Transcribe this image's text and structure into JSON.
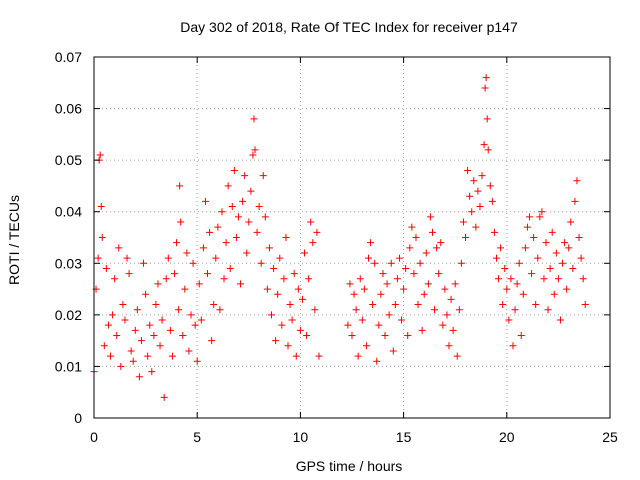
{
  "chart_data": {
    "type": "scatter",
    "title": "Day 302 of 2018, Rate Of TEC Index for receiver p147",
    "xlabel": "GPS time / hours",
    "ylabel": "ROTI / TECUs",
    "xlim": [
      0,
      25
    ],
    "ylim": [
      0,
      0.07
    ],
    "x_ticks": [
      0,
      5,
      10,
      15,
      20,
      25
    ],
    "x_tick_labels": [
      "0",
      "5",
      "10",
      "15",
      "20",
      "25"
    ],
    "y_ticks": [
      0,
      0.01,
      0.02,
      0.03,
      0.04,
      0.05,
      0.06,
      0.07
    ],
    "y_tick_labels": [
      "0",
      "0.01",
      "0.02",
      "0.03",
      "0.04",
      "0.05",
      "0.06",
      "0.07"
    ],
    "grid": true,
    "marker": "plus",
    "series_color": "#ff0000",
    "data_gaps_hours": [
      [
        11.0,
        12.2
      ]
    ],
    "series": [
      {
        "name": "ROTI",
        "points": [
          [
            0.0,
            0.009
          ],
          [
            0.1,
            0.025
          ],
          [
            0.2,
            0.031
          ],
          [
            0.25,
            0.05
          ],
          [
            0.3,
            0.051
          ],
          [
            0.35,
            0.041
          ],
          [
            0.4,
            0.035
          ],
          [
            0.5,
            0.014
          ],
          [
            0.6,
            0.029
          ],
          [
            0.7,
            0.018
          ],
          [
            0.8,
            0.012
          ],
          [
            0.9,
            0.02
          ],
          [
            1.0,
            0.027
          ],
          [
            1.1,
            0.016
          ],
          [
            1.2,
            0.033
          ],
          [
            1.3,
            0.01
          ],
          [
            1.4,
            0.022
          ],
          [
            1.5,
            0.019
          ],
          [
            1.6,
            0.031
          ],
          [
            1.7,
            0.028
          ],
          [
            1.8,
            0.013
          ],
          [
            1.9,
            0.011
          ],
          [
            2.0,
            0.017
          ],
          [
            2.1,
            0.021
          ],
          [
            2.2,
            0.008
          ],
          [
            2.3,
            0.015
          ],
          [
            2.4,
            0.03
          ],
          [
            2.5,
            0.024
          ],
          [
            2.6,
            0.012
          ],
          [
            2.7,
            0.018
          ],
          [
            2.8,
            0.009
          ],
          [
            2.9,
            0.016
          ],
          [
            3.0,
            0.022
          ],
          [
            3.1,
            0.026
          ],
          [
            3.2,
            0.014
          ],
          [
            3.3,
            0.019
          ],
          [
            3.4,
            0.004
          ],
          [
            3.5,
            0.027
          ],
          [
            3.6,
            0.031
          ],
          [
            3.7,
            0.017
          ],
          [
            3.8,
            0.012
          ],
          [
            3.9,
            0.028
          ],
          [
            4.0,
            0.034
          ],
          [
            4.1,
            0.021
          ],
          [
            4.15,
            0.045
          ],
          [
            4.2,
            0.038
          ],
          [
            4.3,
            0.016
          ],
          [
            4.4,
            0.025
          ],
          [
            4.5,
            0.032
          ],
          [
            4.6,
            0.013
          ],
          [
            4.7,
            0.02
          ],
          [
            4.8,
            0.03
          ],
          [
            4.9,
            0.018
          ],
          [
            5.0,
            0.011
          ],
          [
            5.1,
            0.026
          ],
          [
            5.2,
            0.019
          ],
          [
            5.3,
            0.033
          ],
          [
            5.4,
            0.042
          ],
          [
            5.5,
            0.028
          ],
          [
            5.6,
            0.036
          ],
          [
            5.7,
            0.015
          ],
          [
            5.8,
            0.022
          ],
          [
            5.9,
            0.031
          ],
          [
            6.0,
            0.037
          ],
          [
            6.1,
            0.021
          ],
          [
            6.2,
            0.04
          ],
          [
            6.3,
            0.027
          ],
          [
            6.4,
            0.034
          ],
          [
            6.5,
            0.045
          ],
          [
            6.6,
            0.029
          ],
          [
            6.7,
            0.041
          ],
          [
            6.8,
            0.048
          ],
          [
            6.9,
            0.035
          ],
          [
            7.0,
            0.039
          ],
          [
            7.1,
            0.026
          ],
          [
            7.2,
            0.042
          ],
          [
            7.3,
            0.047
          ],
          [
            7.4,
            0.032
          ],
          [
            7.5,
            0.038
          ],
          [
            7.6,
            0.044
          ],
          [
            7.7,
            0.051
          ],
          [
            7.75,
            0.058
          ],
          [
            7.8,
            0.052
          ],
          [
            7.9,
            0.036
          ],
          [
            8.0,
            0.041
          ],
          [
            8.1,
            0.03
          ],
          [
            8.2,
            0.047
          ],
          [
            8.3,
            0.039
          ],
          [
            8.4,
            0.025
          ],
          [
            8.5,
            0.033
          ],
          [
            8.6,
            0.02
          ],
          [
            8.7,
            0.029
          ],
          [
            8.8,
            0.015
          ],
          [
            8.9,
            0.024
          ],
          [
            9.0,
            0.031
          ],
          [
            9.1,
            0.018
          ],
          [
            9.2,
            0.027
          ],
          [
            9.3,
            0.035
          ],
          [
            9.4,
            0.014
          ],
          [
            9.5,
            0.022
          ],
          [
            9.6,
            0.019
          ],
          [
            9.7,
            0.028
          ],
          [
            9.8,
            0.012
          ],
          [
            9.9,
            0.025
          ],
          [
            10.0,
            0.017
          ],
          [
            10.1,
            0.023
          ],
          [
            10.2,
            0.032
          ],
          [
            10.3,
            0.016
          ],
          [
            10.4,
            0.027
          ],
          [
            10.5,
            0.038
          ],
          [
            10.6,
            0.034
          ],
          [
            10.7,
            0.021
          ],
          [
            10.8,
            0.036
          ],
          [
            10.9,
            0.012
          ],
          [
            12.3,
            0.018
          ],
          [
            12.4,
            0.026
          ],
          [
            12.5,
            0.016
          ],
          [
            12.6,
            0.024
          ],
          [
            12.7,
            0.021
          ],
          [
            12.8,
            0.012
          ],
          [
            12.9,
            0.027
          ],
          [
            13.0,
            0.019
          ],
          [
            13.1,
            0.025
          ],
          [
            13.2,
            0.014
          ],
          [
            13.3,
            0.031
          ],
          [
            13.4,
            0.034
          ],
          [
            13.5,
            0.022
          ],
          [
            13.6,
            0.03
          ],
          [
            13.7,
            0.011
          ],
          [
            13.8,
            0.018
          ],
          [
            13.9,
            0.024
          ],
          [
            14.0,
            0.028
          ],
          [
            14.1,
            0.016
          ],
          [
            14.2,
            0.026
          ],
          [
            14.3,
            0.02
          ],
          [
            14.4,
            0.03
          ],
          [
            14.5,
            0.013
          ],
          [
            14.6,
            0.022
          ],
          [
            14.7,
            0.027
          ],
          [
            14.8,
            0.031
          ],
          [
            14.9,
            0.019
          ],
          [
            15.0,
            0.025
          ],
          [
            15.1,
            0.029
          ],
          [
            15.2,
            0.016
          ],
          [
            15.3,
            0.033
          ],
          [
            15.4,
            0.037
          ],
          [
            15.5,
            0.028
          ],
          [
            15.6,
            0.035
          ],
          [
            15.7,
            0.022
          ],
          [
            15.8,
            0.03
          ],
          [
            15.9,
            0.017
          ],
          [
            16.0,
            0.024
          ],
          [
            16.1,
            0.032
          ],
          [
            16.2,
            0.026
          ],
          [
            16.3,
            0.039
          ],
          [
            16.4,
            0.036
          ],
          [
            16.5,
            0.021
          ],
          [
            16.6,
            0.033
          ],
          [
            16.7,
            0.028
          ],
          [
            16.8,
            0.034
          ],
          [
            16.9,
            0.018
          ],
          [
            17.0,
            0.025
          ],
          [
            17.1,
            0.02
          ],
          [
            17.2,
            0.014
          ],
          [
            17.3,
            0.023
          ],
          [
            17.4,
            0.017
          ],
          [
            17.5,
            0.026
          ],
          [
            17.6,
            0.012
          ],
          [
            17.7,
            0.021
          ],
          [
            17.8,
            0.03
          ],
          [
            17.9,
            0.038
          ],
          [
            18.0,
            0.035
          ],
          [
            18.1,
            0.048
          ],
          [
            18.2,
            0.043
          ],
          [
            18.3,
            0.04
          ],
          [
            18.4,
            0.046
          ],
          [
            18.5,
            0.037
          ],
          [
            18.6,
            0.044
          ],
          [
            18.7,
            0.041
          ],
          [
            18.8,
            0.047
          ],
          [
            18.9,
            0.053
          ],
          [
            18.95,
            0.064
          ],
          [
            19.0,
            0.066
          ],
          [
            19.05,
            0.058
          ],
          [
            19.1,
            0.052
          ],
          [
            19.2,
            0.045
          ],
          [
            19.3,
            0.042
          ],
          [
            19.4,
            0.036
          ],
          [
            19.5,
            0.031
          ],
          [
            19.6,
            0.027
          ],
          [
            19.7,
            0.033
          ],
          [
            19.8,
            0.022
          ],
          [
            19.9,
            0.029
          ],
          [
            20.0,
            0.025
          ],
          [
            20.1,
            0.019
          ],
          [
            20.2,
            0.027
          ],
          [
            20.3,
            0.014
          ],
          [
            20.4,
            0.021
          ],
          [
            20.5,
            0.026
          ],
          [
            20.6,
            0.03
          ],
          [
            20.7,
            0.016
          ],
          [
            20.8,
            0.024
          ],
          [
            20.9,
            0.033
          ],
          [
            21.0,
            0.037
          ],
          [
            21.1,
            0.039
          ],
          [
            21.2,
            0.028
          ],
          [
            21.3,
            0.035
          ],
          [
            21.4,
            0.022
          ],
          [
            21.5,
            0.031
          ],
          [
            21.6,
            0.039
          ],
          [
            21.7,
            0.04
          ],
          [
            21.8,
            0.027
          ],
          [
            21.9,
            0.034
          ],
          [
            22.0,
            0.021
          ],
          [
            22.1,
            0.029
          ],
          [
            22.2,
            0.036
          ],
          [
            22.3,
            0.024
          ],
          [
            22.4,
            0.032
          ],
          [
            22.5,
            0.027
          ],
          [
            22.6,
            0.019
          ],
          [
            22.7,
            0.03
          ],
          [
            22.8,
            0.034
          ],
          [
            22.9,
            0.025
          ],
          [
            23.0,
            0.033
          ],
          [
            23.1,
            0.038
          ],
          [
            23.2,
            0.029
          ],
          [
            23.3,
            0.042
          ],
          [
            23.4,
            0.046
          ],
          [
            23.5,
            0.035
          ],
          [
            23.6,
            0.031
          ],
          [
            23.7,
            0.027
          ],
          [
            23.8,
            0.022
          ]
        ]
      }
    ]
  }
}
